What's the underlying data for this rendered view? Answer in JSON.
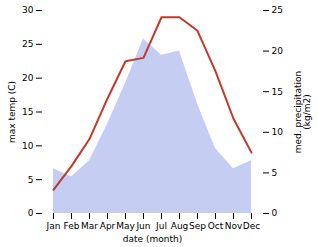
{
  "chart_data": {
    "type": "line",
    "categories": [
      "Jan",
      "Feb",
      "Mar",
      "Apr",
      "May",
      "Jun",
      "Jul",
      "Aug",
      "Sep",
      "Oct",
      "Nov",
      "Dec"
    ],
    "xlabel": "date (month)",
    "ylabel": "max temp (C)",
    "y2label": "med. precipitation\n(kg/m2)",
    "ylim": [
      0,
      30
    ],
    "yticks": [
      0,
      5,
      10,
      15,
      20,
      25,
      30
    ],
    "y2lim": [
      0,
      25
    ],
    "y2ticks": [
      0,
      5,
      10,
      15,
      20,
      25
    ],
    "series": [
      {
        "type": "area",
        "axis": "y2",
        "color": "#c5cef2",
        "values": [
          5.5,
          4.5,
          6.5,
          11.0,
          16.0,
          21.5,
          19.5,
          20.0,
          13.5,
          8.0,
          5.5,
          6.5
        ]
      },
      {
        "type": "line",
        "color": "#c0392b",
        "values": [
          3.5,
          7.0,
          11.0,
          17.0,
          22.5,
          23.0,
          29.0,
          29.0,
          27.0,
          21.0,
          14.0,
          9.0
        ]
      }
    ]
  }
}
